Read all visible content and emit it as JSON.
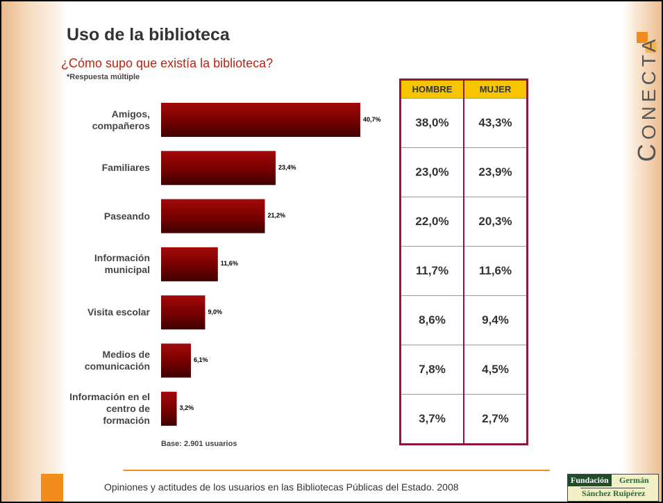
{
  "header": {
    "title": "Uso de la biblioteca",
    "subtitle": "¿Cómo supo que existía la biblioteca?",
    "note": "*Respuesta múltiple"
  },
  "chart_data": {
    "type": "hbar",
    "color": "#7a0000",
    "categories": [
      "Amigos, compañeros",
      "Familiares",
      "Paseando",
      "Información municipal",
      "Visita escolar",
      "Medios de comunicación",
      "Información en el centro de formación"
    ],
    "values": [
      40.7,
      23.4,
      21.2,
      11.6,
      9.0,
      6.1,
      3.2
    ],
    "value_labels": [
      "40,7%",
      "23,4%",
      "21,2%",
      "11,6%",
      "9,0%",
      "6,1%",
      "3,2%"
    ],
    "base_note": "Base: 2.901 usuarios"
  },
  "table": {
    "headers": [
      "HOMBRE",
      "MUJER"
    ],
    "rows": [
      [
        "38,0%",
        "43,3%"
      ],
      [
        "23,0%",
        "23,9%"
      ],
      [
        "22,0%",
        "20,3%"
      ],
      [
        "11,7%",
        "11,6%"
      ],
      [
        "8,6%",
        "9,4%"
      ],
      [
        "7,8%",
        "4,5%"
      ],
      [
        "3,7%",
        "2,7%"
      ]
    ]
  },
  "footer": {
    "text": "Opiniones y actitudes de los usuarios en las Bibliotecas Públicas del Estado. 2008",
    "logo_text": "ONECTA",
    "logo_initial": "C",
    "foundation": [
      "Fundación",
      "Germán",
      "Sánchez Ruipérez"
    ]
  }
}
